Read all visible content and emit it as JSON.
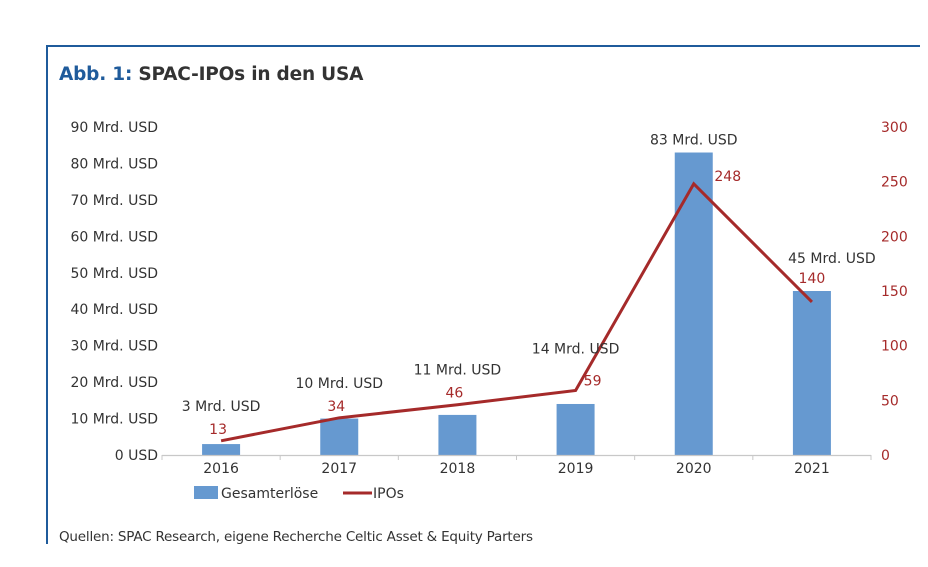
{
  "figure": {
    "title_prefix": "Abb. 1:",
    "title_text": " SPAC-IPOs in den USA",
    "source": "Quellen: SPAC Research, eigene Recherche Celtic Asset & Equity Parters"
  },
  "colors": {
    "frame": "#1f5b9b",
    "bar": "#6699d0",
    "line": "#a52a2a",
    "right_axis_text": "#a52a2a",
    "text": "#333333"
  },
  "chart_data": {
    "type": "bar",
    "title": "Abb. 1: SPAC-IPOs in den USA",
    "categories": [
      "2016",
      "2017",
      "2018",
      "2019",
      "2020",
      "2021"
    ],
    "series": [
      {
        "name": "Gesamterlöse",
        "type": "bar",
        "axis": "left",
        "unit": "Mrd. USD",
        "values": [
          3,
          10,
          11,
          14,
          83,
          45
        ],
        "labels": [
          "3 Mrd. USD",
          "10 Mrd. USD",
          "11 Mrd. USD",
          "14 Mrd. USD",
          "83 Mrd. USD",
          "45 Mrd. USD"
        ]
      },
      {
        "name": "IPOs",
        "type": "line",
        "axis": "right",
        "values": [
          13,
          34,
          46,
          59,
          248,
          140
        ],
        "labels": [
          "13",
          "34",
          "46",
          "59",
          "248",
          "140"
        ]
      }
    ],
    "y_left": {
      "range": [
        0,
        90
      ],
      "ticks": [
        0,
        10,
        20,
        30,
        40,
        50,
        60,
        70,
        80,
        90
      ],
      "tick_labels": [
        "0 USD",
        "10 Mrd. USD",
        "20 Mrd. USD",
        "30 Mrd. USD",
        "40 Mrd. USD",
        "50 Mrd. USD",
        "60 Mrd. USD",
        "70 Mrd. USD",
        "80 Mrd. USD",
        "90 Mrd. USD"
      ]
    },
    "y_right": {
      "range": [
        0,
        300
      ],
      "ticks": [
        0,
        50,
        100,
        150,
        200,
        250,
        300
      ],
      "tick_labels": [
        "0",
        "50",
        "100",
        "150",
        "200",
        "250",
        "300"
      ]
    },
    "xlabel": "",
    "ylabel": "",
    "grid": false,
    "legend": {
      "position": "bottom-left",
      "entries": [
        "Gesamterlöse",
        "IPOs"
      ]
    },
    "source": "Quellen: SPAC Research, eigene Recherche Celtic Asset & Equity Parters"
  }
}
